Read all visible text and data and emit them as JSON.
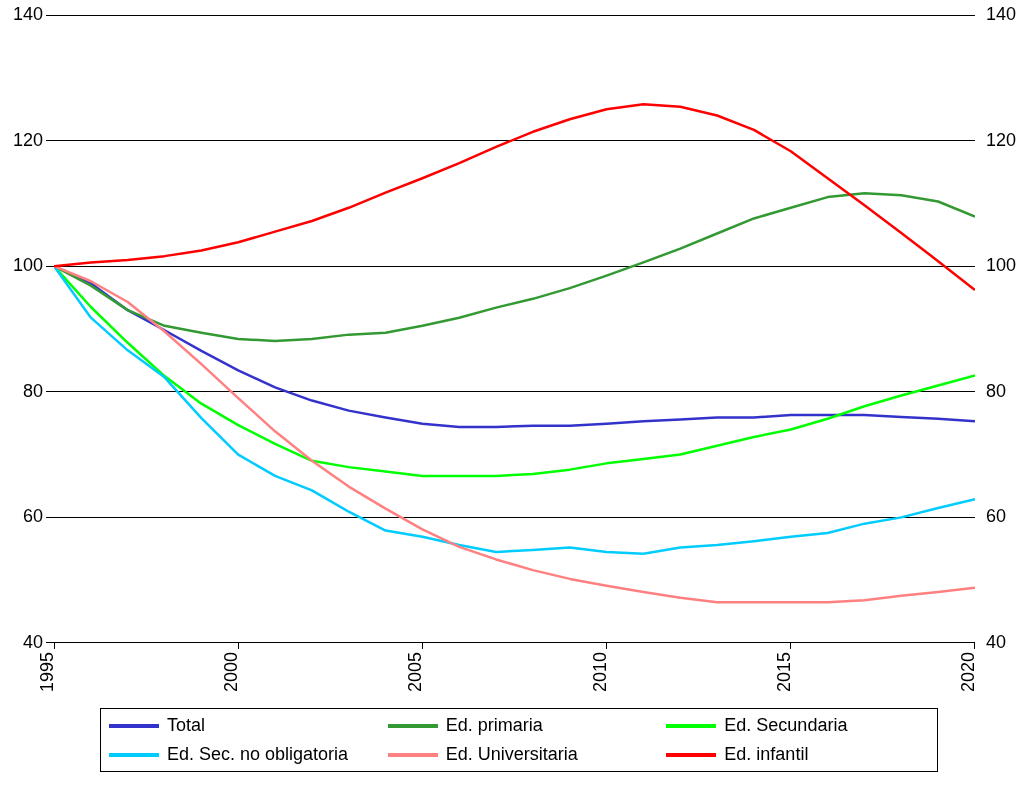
{
  "chart_data": {
    "type": "line",
    "x": [
      1995,
      1996,
      1997,
      1998,
      1999,
      2000,
      2001,
      2002,
      2003,
      2004,
      2005,
      2006,
      2007,
      2008,
      2009,
      2010,
      2011,
      2012,
      2013,
      2014,
      2015,
      2016,
      2017,
      2018,
      2019,
      2020
    ],
    "xlim": [
      1995,
      2020
    ],
    "xticks": [
      1995,
      2000,
      2005,
      2010,
      2015,
      2020
    ],
    "ylim": [
      40,
      140
    ],
    "yticks": [
      40,
      60,
      80,
      100,
      120,
      140
    ],
    "y2lim": [
      40,
      140
    ],
    "y2ticks": [
      40,
      60,
      80,
      100,
      120,
      140
    ],
    "grid": "y",
    "legend": "bottom",
    "marker": "none",
    "line_style": "solid",
    "series": [
      {
        "name": "Total",
        "color": "#3333cc",
        "values": [
          100,
          97.3,
          93,
          89.8,
          86.5,
          83.4,
          80.7,
          78.6,
          77,
          75.9,
          74.9,
          74.4,
          74.4,
          74.6,
          74.6,
          74.9,
          75.3,
          75.6,
          75.9,
          75.9,
          76.3,
          76.3,
          76.3,
          76,
          75.7,
          75.3
        ]
      },
      {
        "name": "Ed. primaria",
        "color": "#339933",
        "values": [
          100,
          96.9,
          93,
          90.5,
          89.4,
          88.4,
          88.1,
          88.4,
          89.1,
          89.4,
          90.5,
          91.8,
          93.4,
          94.8,
          96.5,
          98.5,
          100.6,
          102.8,
          105.2,
          107.6,
          109.3,
          111,
          111.6,
          111.3,
          110.3,
          107.9
        ]
      },
      {
        "name": "Ed. Secundaria",
        "color": "#00ff00",
        "values": [
          100,
          93.5,
          87.8,
          82.5,
          78.1,
          74.7,
          71.7,
          69,
          68,
          67.3,
          66.6,
          66.6,
          66.6,
          66.9,
          67.6,
          68.6,
          69.3,
          70,
          71.4,
          72.8,
          74,
          75.7,
          77.7,
          79.4,
          81,
          82.6
        ]
      },
      {
        "name": "Ed. Sec. no obligatoria",
        "color": "#00ccff",
        "values": [
          100,
          91.8,
          86.6,
          82.3,
          75.8,
          70,
          66.6,
          64.3,
          60.9,
          57.9,
          56.9,
          55.6,
          54.5,
          54.8,
          55.2,
          54.5,
          54.2,
          55.2,
          55.6,
          56.2,
          56.9,
          57.5,
          59,
          60,
          61.5,
          62.9
        ]
      },
      {
        "name": "Ed. Universitaria",
        "color": "#ff8080",
        "values": [
          100,
          97.6,
          94.3,
          89.6,
          84.4,
          79,
          73.7,
          69,
          64.9,
          61.4,
          58.1,
          55.3,
          53.3,
          51.6,
          50.2,
          49.1,
          48.1,
          47.2,
          46.5,
          46.5,
          46.5,
          46.5,
          46.8,
          47.5,
          48.1,
          48.8
        ]
      },
      {
        "name": "Ed. infantil",
        "color": "#ff0000",
        "values": [
          100,
          100.6,
          101,
          101.6,
          102.5,
          103.8,
          105.5,
          107.2,
          109.3,
          111.7,
          114,
          116.4,
          119,
          121.4,
          123.4,
          125,
          125.8,
          125.4,
          124,
          121.7,
          118.3,
          114,
          109.7,
          105.3,
          100.8,
          96.2
        ]
      }
    ]
  }
}
